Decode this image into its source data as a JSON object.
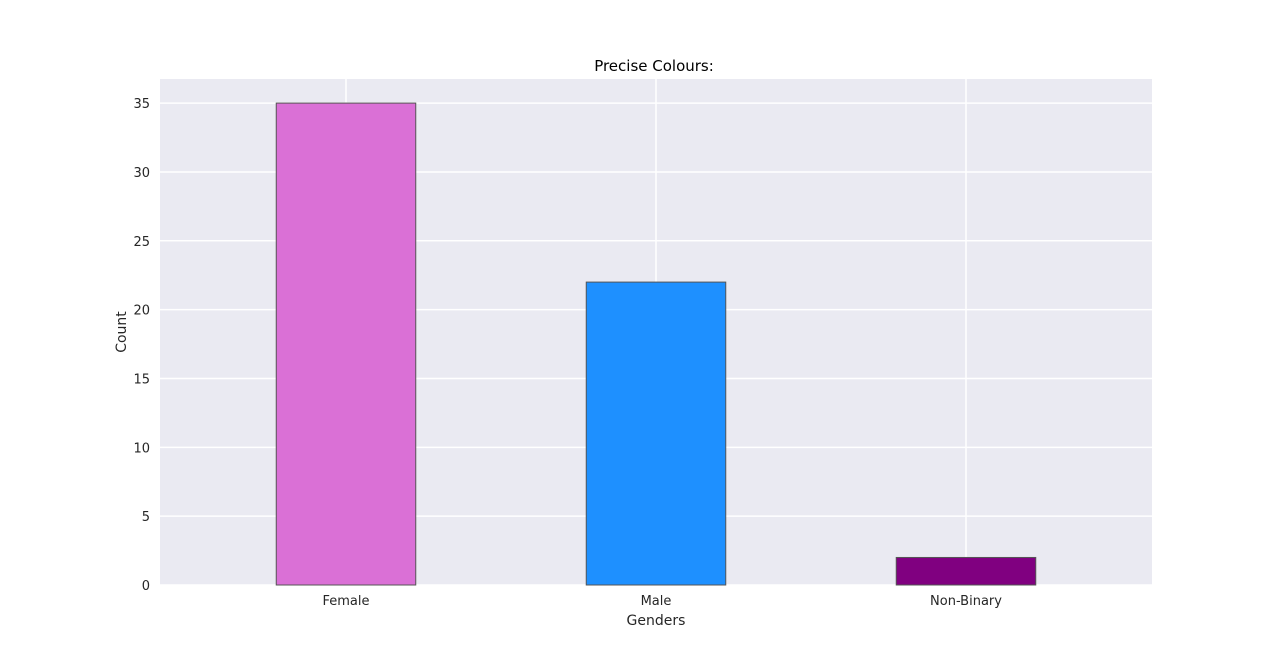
{
  "chart_data": {
    "type": "bar",
    "title": "Precise Colours:",
    "xlabel": "Genders",
    "ylabel": "Count",
    "categories": [
      "Female",
      "Male",
      "Non-Binary"
    ],
    "values": [
      35,
      22,
      2
    ],
    "colors": [
      "#da70d6",
      "#1e90ff",
      "#800080"
    ],
    "ylim": [
      0,
      36.75
    ],
    "yticks": [
      0,
      5,
      10,
      15,
      20,
      25,
      30,
      35
    ],
    "grid": true,
    "style": {
      "axes_background": "#eaeaf2",
      "grid_color": "#ffffff",
      "text_color": "#262626",
      "edge_color": "#555555"
    }
  }
}
